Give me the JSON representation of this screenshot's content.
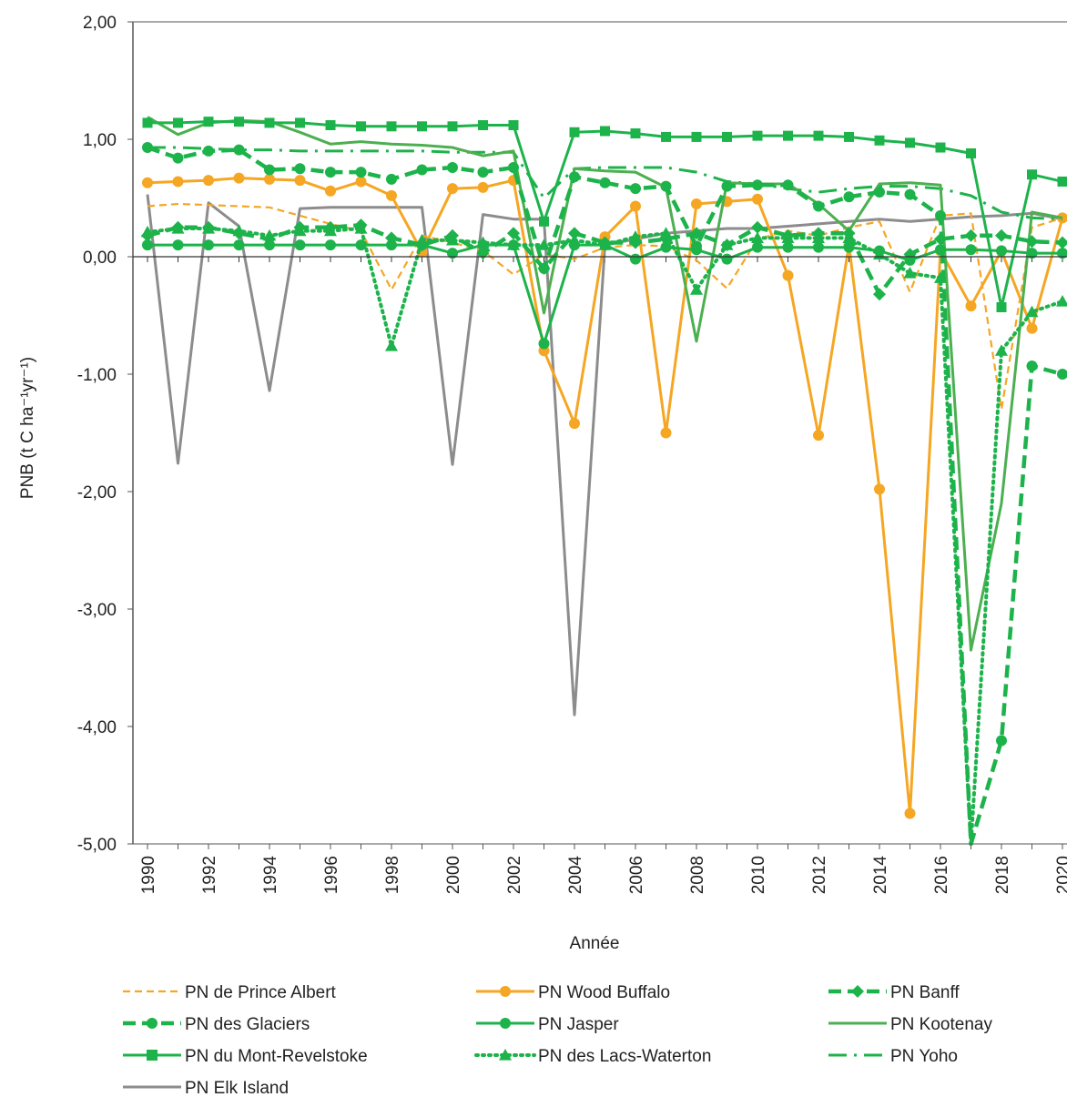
{
  "chart_data": {
    "type": "line",
    "xlabel": "Année",
    "ylabel": "PNB (t C ha⁻¹yr⁻¹)",
    "ylim": [
      -5,
      2
    ],
    "xlim": [
      1990,
      2020
    ],
    "yticks": [
      "2,00",
      "1,00",
      "0,00",
      "-1,00",
      "-2,00",
      "-3,00",
      "-4,00",
      "-5,00"
    ],
    "ytick_values": [
      2,
      1,
      0,
      -1,
      -2,
      -3,
      -4,
      -5
    ],
    "xticks": [
      "1990",
      "1992",
      "1994",
      "1996",
      "1998",
      "2000",
      "2002",
      "2004",
      "2006",
      "2008",
      "2010",
      "2012",
      "2014",
      "2016",
      "2018",
      "2020"
    ],
    "xtick_values": [
      1990,
      1992,
      1994,
      1996,
      1998,
      2000,
      2002,
      2004,
      2006,
      2008,
      2010,
      2012,
      2014,
      2016,
      2018,
      2020
    ],
    "grid": false,
    "legend_position": "bottom",
    "colors": {
      "orange": "#F5A623",
      "green": "#1DB34B",
      "green_light": "#4CAF50",
      "gray": "#8C8C8C"
    },
    "years": [
      1990,
      1991,
      1992,
      1993,
      1994,
      1995,
      1996,
      1997,
      1998,
      1999,
      2000,
      2001,
      2002,
      2003,
      2004,
      2005,
      2006,
      2007,
      2008,
      2009,
      2010,
      2011,
      2012,
      2013,
      2014,
      2015,
      2016,
      2017,
      2018,
      2019,
      2020
    ],
    "series": [
      {
        "name": "PN de Prince Albert",
        "color": "#F5A623",
        "dash": "dashed-thin",
        "marker": "none",
        "values": [
          0.43,
          0.45,
          0.44,
          0.43,
          0.42,
          0.35,
          0.28,
          0.22,
          -0.28,
          0.18,
          0.12,
          0.05,
          -0.15,
          0.02,
          -0.02,
          0.08,
          0.1,
          0.09,
          -0.03,
          -0.27,
          0.15,
          0.22,
          0.18,
          0.25,
          0.3,
          -0.3,
          0.35,
          0.37,
          -1.3,
          0.25,
          0.33
        ]
      },
      {
        "name": "PN Wood Buffalo",
        "color": "#F5A623",
        "dash": "solid",
        "marker": "circle",
        "values": [
          0.63,
          0.64,
          0.65,
          0.67,
          0.66,
          0.65,
          0.56,
          0.64,
          0.52,
          0.04,
          0.58,
          0.59,
          0.65,
          -0.8,
          -1.42,
          0.17,
          0.43,
          -1.5,
          0.45,
          0.47,
          0.49,
          -0.16,
          -1.52,
          0.1,
          -1.98,
          -4.74,
          0.05,
          -0.42,
          0.05,
          -0.61,
          0.33
        ]
      },
      {
        "name": "PN Banff",
        "color": "#1DB34B",
        "dash": "dashed-thick",
        "marker": "diamond",
        "values": [
          0.18,
          0.25,
          0.25,
          0.2,
          0.15,
          0.25,
          0.25,
          0.27,
          0.16,
          0.1,
          0.18,
          0.03,
          0.2,
          -0.1,
          0.2,
          0.12,
          0.12,
          0.15,
          0.2,
          0.1,
          0.25,
          0.18,
          0.2,
          0.2,
          -0.32,
          0.02,
          0.15,
          0.18,
          0.18,
          0.13,
          0.12
        ]
      },
      {
        "name": "PN des Glaciers",
        "color": "#1DB34B",
        "dash": "dashed-thick",
        "marker": "circle",
        "values": [
          0.93,
          0.84,
          0.9,
          0.91,
          0.74,
          0.75,
          0.72,
          0.72,
          0.66,
          0.74,
          0.76,
          0.72,
          0.76,
          -0.1,
          0.68,
          0.63,
          0.58,
          0.6,
          0.09,
          0.6,
          0.61,
          0.61,
          0.43,
          0.51,
          0.55,
          0.53,
          0.35,
          -5.0,
          -4.12,
          -0.93,
          -1.0
        ]
      },
      {
        "name": "PN Jasper",
        "color": "#1DB34B",
        "dash": "solid",
        "marker": "circle",
        "values": [
          0.1,
          0.1,
          0.1,
          0.1,
          0.1,
          0.1,
          0.1,
          0.1,
          0.1,
          0.1,
          0.03,
          0.1,
          0.1,
          -0.74,
          0.1,
          0.1,
          -0.02,
          0.08,
          0.06,
          -0.02,
          0.08,
          0.08,
          0.08,
          0.08,
          0.05,
          -0.03,
          0.06,
          0.06,
          0.05,
          0.03,
          0.03
        ]
      },
      {
        "name": "PN Kootenay",
        "color": "#4CAF50",
        "dash": "solid",
        "marker": "none",
        "values": [
          1.19,
          1.04,
          1.14,
          1.16,
          1.15,
          1.06,
          0.96,
          0.98,
          0.96,
          0.95,
          0.93,
          0.86,
          0.9,
          -0.48,
          0.75,
          0.73,
          0.72,
          0.59,
          -0.72,
          0.63,
          0.62,
          0.62,
          0.45,
          0.22,
          0.62,
          0.63,
          0.61,
          -3.35,
          -2.1,
          0.38,
          0.33
        ]
      },
      {
        "name": "PN du Mont-Revelstoke",
        "color": "#1DB34B",
        "dash": "solid",
        "marker": "square",
        "values": [
          1.14,
          1.14,
          1.15,
          1.15,
          1.14,
          1.14,
          1.12,
          1.11,
          1.11,
          1.11,
          1.11,
          1.12,
          1.12,
          0.3,
          1.06,
          1.07,
          1.05,
          1.02,
          1.02,
          1.02,
          1.03,
          1.03,
          1.03,
          1.02,
          0.99,
          0.97,
          0.93,
          0.88,
          -0.43,
          0.7,
          0.64
        ]
      },
      {
        "name": "PN des Lacs-Waterton",
        "color": "#1DB34B",
        "dash": "dotted",
        "marker": "triangle",
        "values": [
          0.21,
          0.24,
          0.24,
          0.22,
          0.18,
          0.22,
          0.22,
          0.24,
          -0.76,
          0.14,
          0.14,
          0.12,
          0.1,
          0.1,
          0.14,
          0.1,
          0.17,
          0.2,
          -0.28,
          0.1,
          0.16,
          0.16,
          0.16,
          0.16,
          0.02,
          -0.14,
          -0.18,
          -5.0,
          -0.8,
          -0.47,
          -0.38
        ]
      },
      {
        "name": "PN Yoho",
        "color": "#1DB34B",
        "dash": "dash-dot",
        "marker": "none",
        "values": [
          0.93,
          0.93,
          0.92,
          0.91,
          0.91,
          0.9,
          0.9,
          0.9,
          0.9,
          0.9,
          0.89,
          0.89,
          0.89,
          0.5,
          0.75,
          0.76,
          0.76,
          0.76,
          0.72,
          0.64,
          0.62,
          0.58,
          0.55,
          0.58,
          0.6,
          0.6,
          0.58,
          0.52,
          0.38,
          0.33,
          0.32
        ]
      },
      {
        "name": "PN Elk Island",
        "color": "#8C8C8C",
        "dash": "solid",
        "marker": "none",
        "values": [
          0.53,
          -1.76,
          0.46,
          0.26,
          -1.14,
          0.41,
          0.42,
          0.42,
          0.42,
          0.42,
          -1.77,
          0.36,
          0.32,
          0.32,
          -3.9,
          0.1,
          0.15,
          0.2,
          0.22,
          0.24,
          0.24,
          0.26,
          0.28,
          0.3,
          0.32,
          0.3,
          0.32,
          0.34,
          0.35,
          0.37,
          0.32
        ]
      }
    ]
  }
}
